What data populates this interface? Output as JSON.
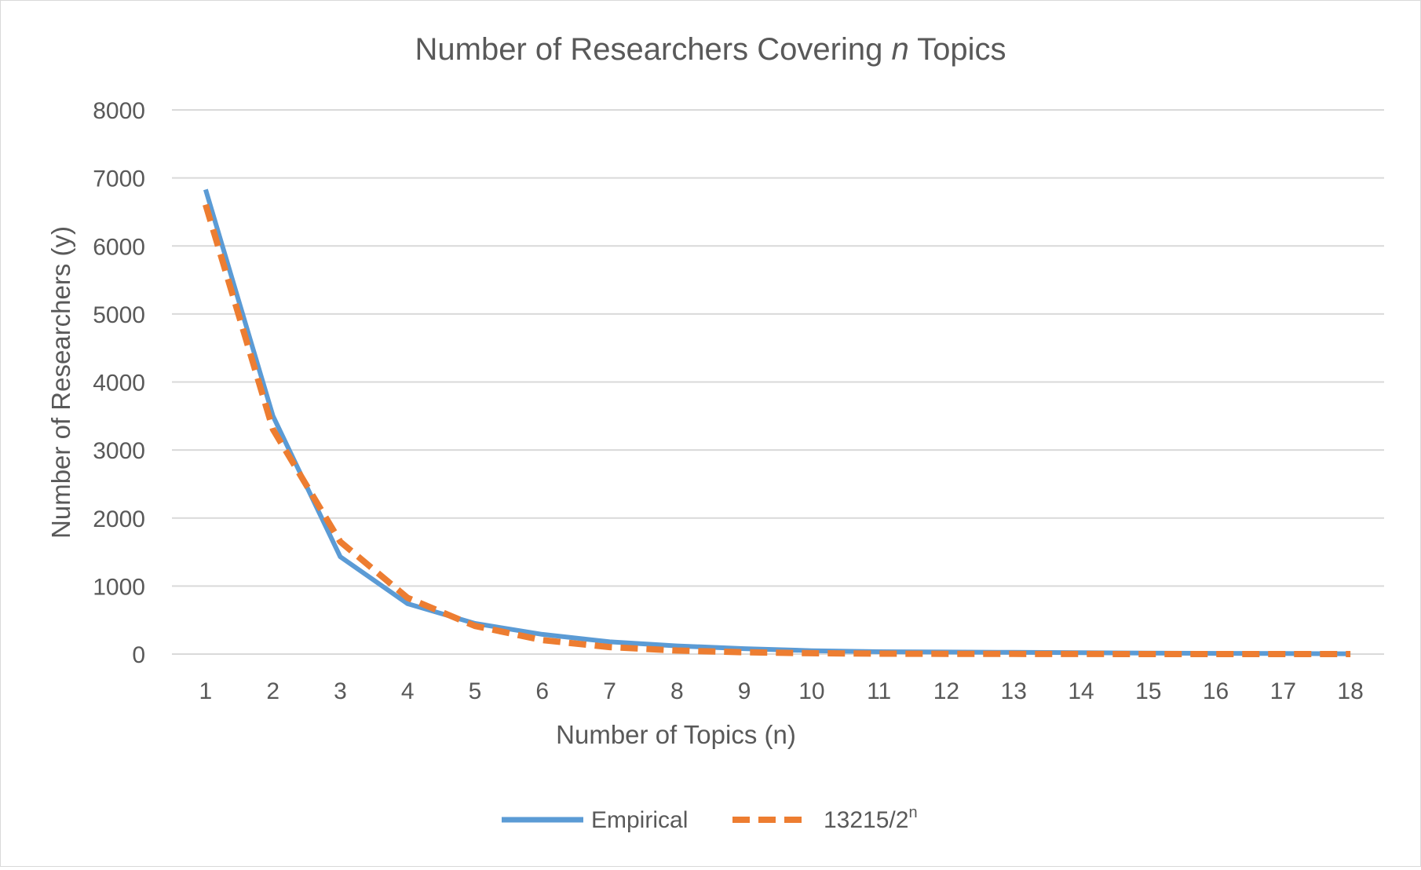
{
  "chart_data": {
    "type": "line",
    "title_parts": [
      "Number of Researchers Covering ",
      "n",
      " Topics"
    ],
    "xlabel": "Number of Topics (n)",
    "ylabel": "Number of Researchers (y)",
    "x": [
      1,
      2,
      3,
      4,
      5,
      6,
      7,
      8,
      9,
      10,
      11,
      12,
      13,
      14,
      15,
      16,
      17,
      18
    ],
    "ylim": [
      0,
      8000
    ],
    "yticks": [
      0,
      1000,
      2000,
      3000,
      4000,
      5000,
      6000,
      7000,
      8000
    ],
    "grid": true,
    "legend_position": "bottom",
    "series": [
      {
        "name": "Empirical",
        "color": "#5b9bd5",
        "dash": "solid",
        "values": [
          6830,
          3500,
          1430,
          740,
          450,
          290,
          180,
          120,
          80,
          50,
          35,
          30,
          25,
          20,
          15,
          10,
          8,
          5
        ]
      },
      {
        "name_base": "13215/2",
        "name_sup": "n",
        "color": "#ed7d31",
        "dash": "dashed",
        "values": [
          6608,
          3304,
          1652,
          826,
          413,
          206,
          103,
          52,
          26,
          13,
          6,
          3,
          2,
          1,
          0,
          0,
          0,
          0
        ]
      }
    ]
  }
}
